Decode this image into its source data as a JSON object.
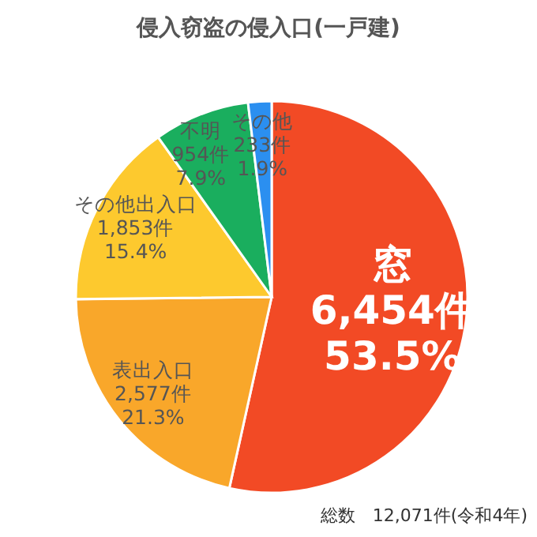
{
  "chart_data": {
    "type": "pie",
    "title": "侵入窃盗の侵入口(一戸建)",
    "categories": [
      "窓",
      "表出入口",
      "その他出入口",
      "不明",
      "その他"
    ],
    "values": [
      6454,
      2577,
      1853,
      954,
      233
    ],
    "value_labels": [
      "6,454件\n53.5%",
      "2,577件\n21.3%",
      "1,853件\n15.4%",
      "954件\n7.9%",
      "233件\n1.9%"
    ],
    "colors": [
      "#f24a25",
      "#f9a72a",
      "#fdc92e",
      "#1aae5e",
      "#2b8ff0"
    ],
    "annotations": [
      "総数　12,071件(令和4年)"
    ]
  }
}
